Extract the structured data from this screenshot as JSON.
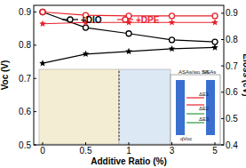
{
  "chart_data": {
    "type": "line",
    "categories": [
      "0",
      "0.5",
      "1",
      "3",
      "5"
    ],
    "x_label": "Additive Ratio (%)",
    "y_label": "Voc (V)",
    "y2_label": "Eloss (eV)",
    "ylim": [
      0.5,
      0.92
    ],
    "yticks": [
      0.5,
      0.6,
      0.7,
      0.8,
      0.9
    ],
    "y2lim": [
      0.4,
      0.93
    ],
    "y2ticks": [
      0.4,
      0.5,
      0.6,
      0.7,
      0.8,
      0.9
    ],
    "legend": "top",
    "series": [
      {
        "name": "+DIO",
        "color": "#000000",
        "marker": "circle",
        "values": [
          0.9,
          0.853,
          0.835,
          0.816,
          0.81
        ]
      },
      {
        "name": "+DPE",
        "color": "#e8202a",
        "marker": "circle",
        "values": [
          0.9,
          0.89,
          0.888,
          0.888,
          0.888
        ]
      },
      {
        "color": "#000000",
        "marker": "star",
        "axis": "y2",
        "values": [
          0.71,
          0.745,
          0.755,
          0.765,
          0.77
        ]
      },
      {
        "color": "#e8202a",
        "marker": "star",
        "axis": "y2",
        "values": [
          0.86,
          0.865,
          0.865,
          0.865,
          0.865
        ]
      }
    ],
    "annotations": [
      "ASAs/wo SA",
      "NSAs",
      "ΔE1",
      "ΔE2",
      "ΔE3",
      "qVoc"
    ]
  }
}
